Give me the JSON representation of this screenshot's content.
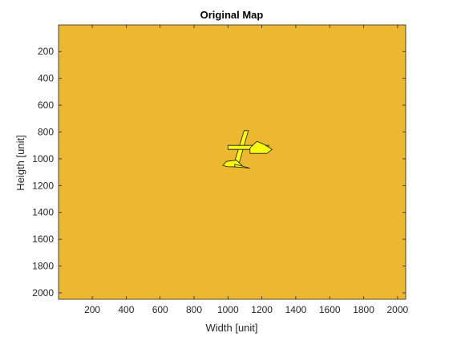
{
  "chart_data": {
    "type": "heatmap",
    "title": "Original Map",
    "xlabel": "Width [unit]",
    "ylabel": "Heigth [unit]",
    "xlim": [
      1,
      2048
    ],
    "ylim": [
      1,
      2048
    ],
    "y_reversed": true,
    "x_ticks": [
      200,
      400,
      600,
      800,
      1000,
      1200,
      1400,
      1600,
      1800,
      2000
    ],
    "y_ticks": [
      200,
      400,
      600,
      800,
      1000,
      1200,
      1400,
      1600,
      1800,
      2000
    ],
    "grid": false,
    "background_value_color": "#ecb830",
    "feature_color": "#f9fb0e",
    "outline_color": "#1a1a1a",
    "features": [
      {
        "name": "vertical-stroke",
        "points": [
          [
            1095,
            790
          ],
          [
            1120,
            790
          ],
          [
            1060,
            1060
          ],
          [
            1030,
            1060
          ]
        ]
      },
      {
        "name": "horizontal-bar",
        "points": [
          [
            1000,
            900
          ],
          [
            1240,
            900
          ],
          [
            1240,
            930
          ],
          [
            1000,
            930
          ]
        ]
      },
      {
        "name": "right-lobe",
        "points": [
          [
            1130,
            920
          ],
          [
            1170,
            870
          ],
          [
            1210,
            890
          ],
          [
            1260,
            930
          ],
          [
            1230,
            960
          ],
          [
            1130,
            960
          ]
        ]
      },
      {
        "name": "left-hook",
        "points": [
          [
            990,
            1020
          ],
          [
            1050,
            1010
          ],
          [
            1090,
            1060
          ],
          [
            1000,
            1060
          ],
          [
            970,
            1050
          ]
        ]
      },
      {
        "name": "tail",
        "points": [
          [
            1040,
            1040
          ],
          [
            1130,
            1070
          ],
          [
            1040,
            1060
          ]
        ]
      }
    ]
  }
}
